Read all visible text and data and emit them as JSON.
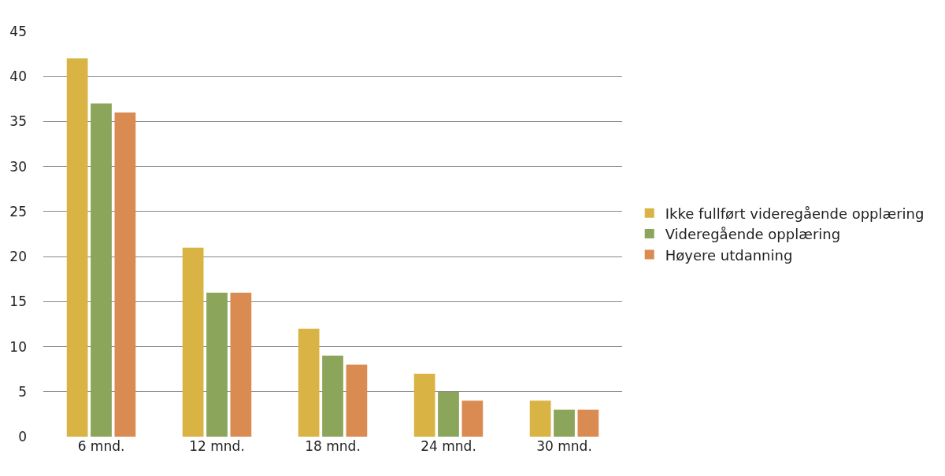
{
  "chart_data": {
    "type": "bar",
    "categories": [
      "6 mnd.",
      "12 mnd.",
      "18 mnd.",
      "24 mnd.",
      "30 mnd."
    ],
    "series": [
      {
        "name": "Ikke fullført videregående opplæring",
        "color": "#d9b343",
        "values": [
          42,
          21,
          12,
          7,
          4
        ]
      },
      {
        "name": "Videregående opplæring",
        "color": "#8ba65a",
        "values": [
          37,
          16,
          9,
          5,
          3
        ]
      },
      {
        "name": "Høyere utdanning",
        "color": "#d98b52",
        "values": [
          36,
          16,
          8,
          4,
          3
        ]
      }
    ],
    "ylim": [
      0,
      45
    ],
    "yticks": [
      0,
      5,
      10,
      15,
      20,
      25,
      30,
      35,
      40,
      45
    ],
    "grid": "y",
    "legend": "right"
  }
}
